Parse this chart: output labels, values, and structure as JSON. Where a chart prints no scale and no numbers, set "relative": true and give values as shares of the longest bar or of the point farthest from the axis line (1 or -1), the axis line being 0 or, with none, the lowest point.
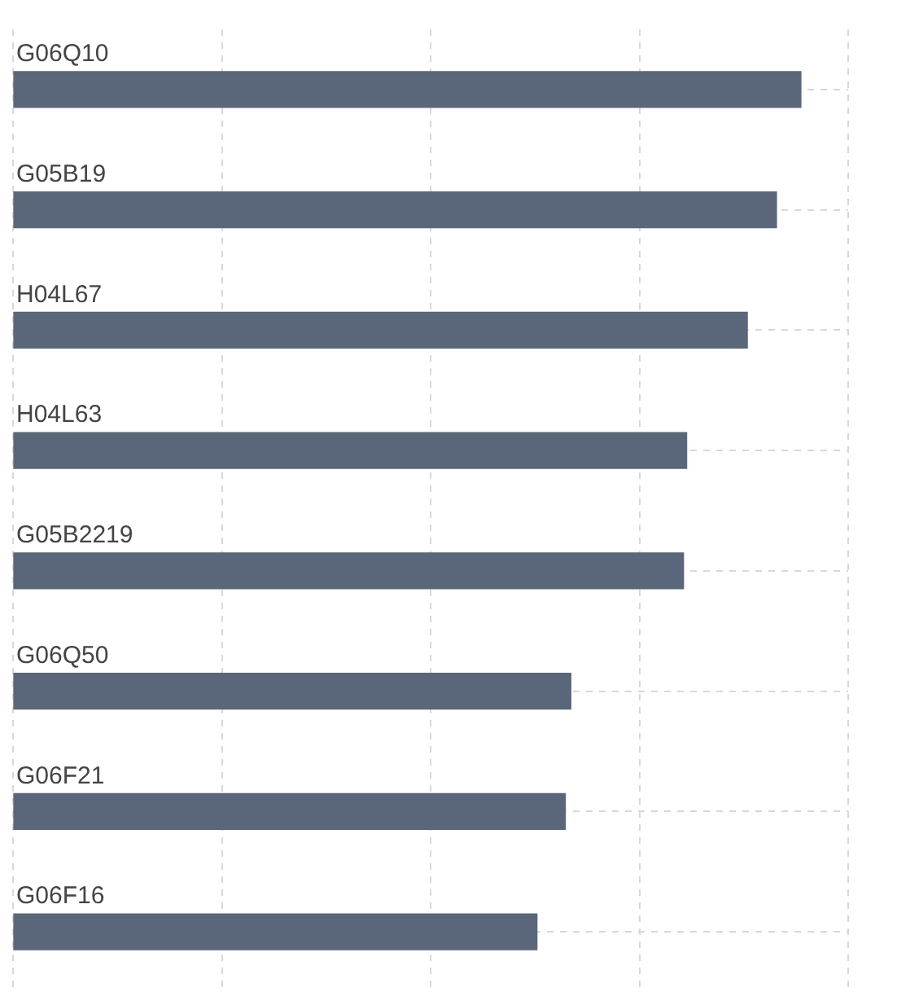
{
  "chart_data": {
    "type": "bar",
    "orientation": "horizontal",
    "relative": true,
    "categories": [
      "G06Q10",
      "G05B19",
      "H04L67",
      "H04L63",
      "G05B2219",
      "G06Q50",
      "G06F21",
      "G06F16"
    ],
    "values": [
      1,
      0.969,
      0.932,
      0.855,
      0.851,
      0.708,
      0.701,
      0.665
    ],
    "color": "#5a6679",
    "grid": true
  }
}
